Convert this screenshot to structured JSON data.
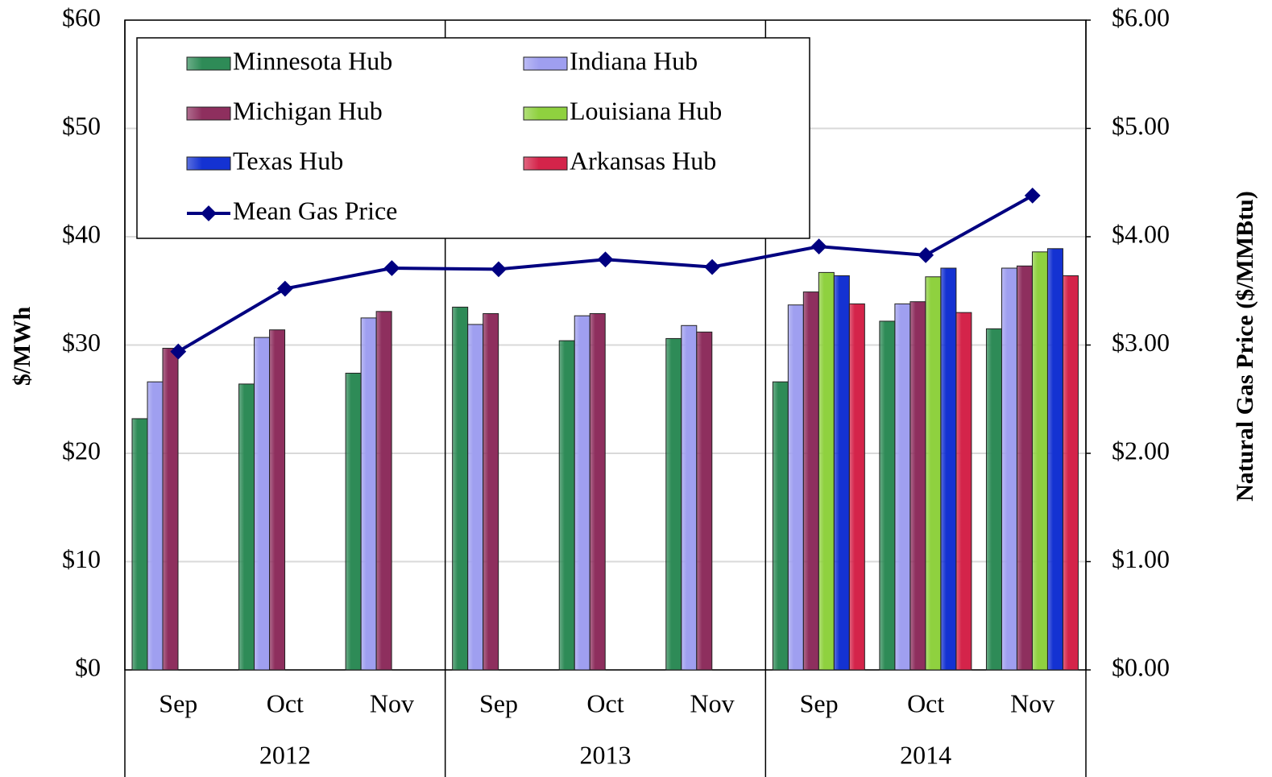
{
  "chart_data": {
    "type": "bar",
    "categories": [
      "Sep",
      "Oct",
      "Nov",
      "Sep",
      "Oct",
      "Nov",
      "Sep",
      "Oct",
      "Nov"
    ],
    "groups": [
      "2012",
      "2013",
      "2014"
    ],
    "y_label": "$/MWh",
    "y2_label": "Natural Gas Price ($/MMBtu)",
    "ylim": [
      0,
      60
    ],
    "yticks": [
      {
        "value": 0,
        "label": "$0"
      },
      {
        "value": 10,
        "label": "$10"
      },
      {
        "value": 20,
        "label": "$20"
      },
      {
        "value": 30,
        "label": "$30"
      },
      {
        "value": 40,
        "label": "$40"
      },
      {
        "value": 50,
        "label": "$50"
      },
      {
        "value": 60,
        "label": "$60"
      }
    ],
    "y2lim": [
      0,
      6
    ],
    "y2ticks": [
      {
        "value": 0,
        "label": "$0.00"
      },
      {
        "value": 1,
        "label": "$1.00"
      },
      {
        "value": 2,
        "label": "$2.00"
      },
      {
        "value": 3,
        "label": "$3.00"
      },
      {
        "value": 4,
        "label": "$4.00"
      },
      {
        "value": 5,
        "label": "$5.00"
      },
      {
        "value": 6,
        "label": "$6.00"
      }
    ],
    "grid": true,
    "legend": "upper left",
    "series": [
      {
        "name": "Minnesota Hub",
        "color": "#2e8b57",
        "values": [
          23.2,
          26.4,
          27.4,
          33.5,
          30.4,
          30.6,
          26.6,
          32.2,
          31.5
        ]
      },
      {
        "name": "Indiana Hub",
        "color": "#9f9ff0",
        "values": [
          26.6,
          30.7,
          32.5,
          31.9,
          32.7,
          31.8,
          33.7,
          33.8,
          37.1
        ]
      },
      {
        "name": "Michigan Hub",
        "color": "#8e2f5e",
        "values": [
          29.7,
          31.4,
          33.1,
          32.9,
          32.9,
          31.2,
          34.9,
          34.0,
          37.3
        ]
      },
      {
        "name": "Louisiana Hub",
        "color": "#8fd13f",
        "values": [
          null,
          null,
          null,
          null,
          null,
          null,
          36.7,
          36.3,
          38.6
        ]
      },
      {
        "name": "Texas Hub",
        "color": "#1432d2",
        "values": [
          null,
          null,
          null,
          null,
          null,
          null,
          36.4,
          37.1,
          38.9
        ]
      },
      {
        "name": "Arkansas Hub",
        "color": "#d4244a",
        "values": [
          null,
          null,
          null,
          null,
          null,
          null,
          33.8,
          33.0,
          36.4
        ]
      },
      {
        "name": "Mean Gas Price",
        "color": "#000080",
        "type": "line",
        "axis": "y2",
        "values": [
          2.94,
          3.52,
          3.71,
          3.7,
          3.79,
          3.72,
          3.91,
          3.83,
          4.38
        ]
      }
    ]
  }
}
